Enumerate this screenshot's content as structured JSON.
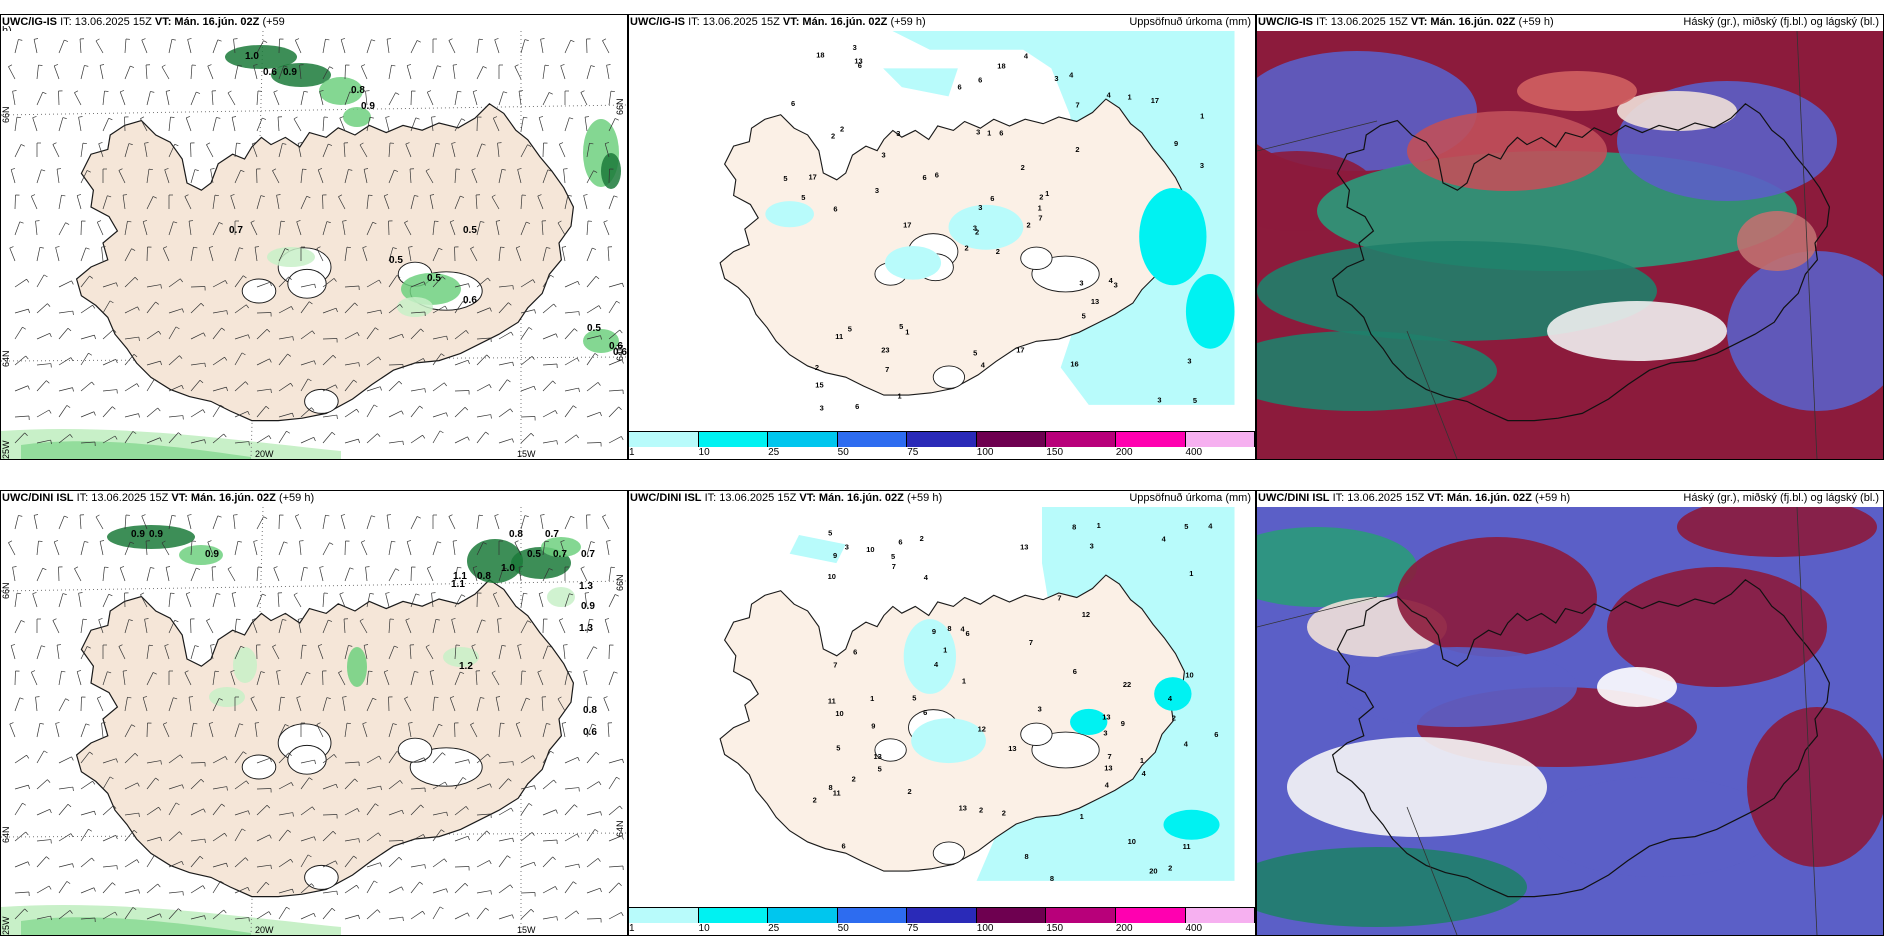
{
  "panels": [
    {
      "id": "ig-wind",
      "model": "UWC/IG-IS",
      "it": "IT: 13.06.2025 15Z",
      "vt": "VT: Mán. 16.jún. 02Z",
      "lead": "(+59",
      "lead2": "h)",
      "right_title": "",
      "labels": [
        "1.0",
        "0.6",
        "0.9",
        "0.8",
        "0.9",
        "0.7",
        "0.5",
        "0.5",
        "0.5",
        "0.6",
        "0.5",
        "0.6",
        "0.6"
      ],
      "axis": {
        "lat1": "66N",
        "lat2": "64N",
        "lon1": "20W",
        "lon2": "15W",
        "lon3": "25W",
        "lat1r": "66N",
        "lat2r": "64N"
      }
    },
    {
      "id": "ig-precip",
      "model": "UWC/IG-IS",
      "it": "IT: 13.06.2025 15Z",
      "vt": "VT: Mán. 16.jún. 02Z",
      "lead": "(+59 h)",
      "right_title": "Uppsöfnuð úrkoma (mm)",
      "labels": [
        "2",
        "2",
        "2",
        "2",
        "2",
        "1",
        "4",
        "6",
        "7",
        "2",
        "6",
        "5",
        "6",
        "1",
        "2",
        "2",
        "6",
        "3",
        "2",
        "5",
        "6",
        "15",
        "7",
        "1",
        "1",
        "3",
        "2",
        "6",
        "5",
        "3",
        "3",
        "3",
        "5",
        "3",
        "3",
        "4",
        "5",
        "3",
        "3",
        "4",
        "4",
        "6",
        "3",
        "5",
        "1",
        "5",
        "1",
        "3",
        "4",
        "7",
        "11",
        "9",
        "6",
        "13",
        "16",
        "23",
        "13",
        "18",
        "17",
        "17",
        "18",
        "17",
        "17",
        "3",
        "1",
        "3",
        "3",
        "6",
        "6"
      ],
      "colorbar": {
        "colors": [
          "#b8fbfb",
          "#00f2f2",
          "#00c6ee",
          "#2d6cf0",
          "#2a2ab8",
          "#6e0050",
          "#b8007a",
          "#ff00b0",
          "#f6b0f0"
        ],
        "ticks": [
          "1",
          "10",
          "25",
          "50",
          "75",
          "100",
          "150",
          "200",
          "400"
        ]
      }
    },
    {
      "id": "ig-cloud",
      "model": "UWC/IG-IS",
      "it": "IT: 13.06.2025 15Z",
      "vt": "VT: Mán. 16.jún. 02Z",
      "lead": "(+59 h)",
      "right_title": "Háský (gr.), miðský (fj.bl.) og lágský (bl.)"
    },
    {
      "id": "dini-wind",
      "model": "UWC/DINI ISL",
      "it": "IT: 13.06.2025 15Z",
      "vt": "VT: Mán. 16.jún. 02Z",
      "lead": "(+59 h)",
      "right_title": "",
      "labels": [
        "0.9",
        "0.9",
        "0.9",
        "0.8",
        "0.7",
        "1.1",
        "0.5",
        "0.7",
        "0.7",
        "1.1",
        "0.8",
        "1.0",
        "1.3",
        "0.9",
        "1.3",
        "1.2",
        "0.8",
        "0.6"
      ],
      "axis": {
        "lat1": "66N",
        "lat2": "64N",
        "lon1": "20W",
        "lon2": "15W",
        "lon3": "25W",
        "lat1r": "66N",
        "lat2r": "64N"
      }
    },
    {
      "id": "dini-precip",
      "model": "UWC/DINI ISL",
      "it": "IT: 13.06.2025 15Z",
      "vt": "VT: Mán. 16.jún. 02Z",
      "lead": "(+59 h)",
      "right_title": "Uppsöfnuð úrkoma (mm)",
      "labels": [
        "3",
        "2",
        "6",
        "6",
        "6",
        "10",
        "11",
        "3",
        "9",
        "8",
        "10",
        "11",
        "9",
        "11",
        "13",
        "10",
        "13",
        "3",
        "4",
        "5",
        "4",
        "4",
        "4",
        "4",
        "8",
        "5",
        "7",
        "10",
        "7",
        "22",
        "8",
        "1",
        "1",
        "6",
        "4",
        "4",
        "13",
        "1",
        "2",
        "2",
        "1",
        "1",
        "2",
        "2",
        "1",
        "2",
        "2",
        "3",
        "6",
        "7",
        "6",
        "8",
        "5",
        "13",
        "4",
        "20",
        "12",
        "5",
        "9",
        "10",
        "9",
        "4",
        "7",
        "5",
        "13",
        "6",
        "12",
        "13",
        "5",
        "8",
        "7",
        "2",
        "1"
      ],
      "colorbar": {
        "colors": [
          "#b8fbfb",
          "#00f2f2",
          "#00c6ee",
          "#2d6cf0",
          "#2a2ab8",
          "#6e0050",
          "#b8007a",
          "#ff00b0",
          "#f6b0f0"
        ],
        "ticks": [
          "1",
          "10",
          "25",
          "50",
          "75",
          "100",
          "150",
          "200",
          "400"
        ]
      }
    },
    {
      "id": "dini-cloud",
      "model": "UWC/DINI ISL",
      "it": "IT: 13.06.2025 15Z",
      "vt": "VT: Mán. 16.jún. 02Z",
      "lead": "(+59 h)",
      "right_title": "Háský (gr.), miðský (fj.bl.) og lágský (bl.)"
    }
  ],
  "colors": {
    "land": "#f5e6d8",
    "land_precip": "#fbf0e6",
    "sea_precip": "#b8fbfb",
    "green_light": "#c8f0c8",
    "green_mid": "#6fd07f",
    "green_dark": "#1b7a3a",
    "cloud_high": "#8c1b3c",
    "cloud_mid": "#5b5fc7",
    "cloud_low": "#2a9a7a",
    "cloud_teal": "#1f7f6a"
  }
}
